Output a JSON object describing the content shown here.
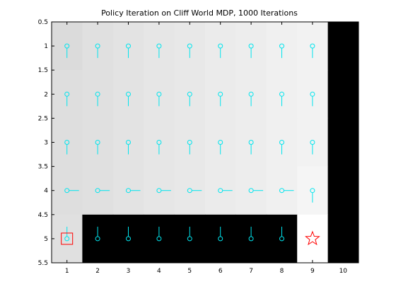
{
  "chart_data": {
    "type": "heatmap",
    "title": "Policy Iteration on Cliff World MDP, 1000 Iterations",
    "xlabel": "",
    "ylabel": "",
    "xlim": [
      0.5,
      10.5
    ],
    "ylim": [
      0.5,
      5.5
    ],
    "y_reversed": true,
    "x_ticks": [
      1,
      2,
      3,
      4,
      5,
      6,
      7,
      8,
      9,
      10
    ],
    "x_tick_labels": [
      "1",
      "2",
      "3",
      "4",
      "5",
      "6",
      "7",
      "8",
      "9",
      "10"
    ],
    "y_ticks": [
      0.5,
      1,
      1.5,
      2,
      2.5,
      3,
      3.5,
      4,
      4.5,
      5,
      5.5
    ],
    "y_tick_labels": [
      "0.5",
      "1",
      "1.5",
      "2",
      "2.5",
      "3",
      "3.5",
      "4",
      "4.5",
      "5",
      "5.5"
    ],
    "grid": false,
    "colormap": "gray",
    "cell_values": [
      [
        0.86,
        0.88,
        0.89,
        0.9,
        0.91,
        0.92,
        0.93,
        0.94,
        0.95,
        0.0
      ],
      [
        0.87,
        0.88,
        0.89,
        0.9,
        0.91,
        0.92,
        0.93,
        0.94,
        0.95,
        0.0
      ],
      [
        0.87,
        0.88,
        0.89,
        0.9,
        0.91,
        0.92,
        0.93,
        0.94,
        0.95,
        0.0
      ],
      [
        0.87,
        0.88,
        0.89,
        0.9,
        0.91,
        0.92,
        0.93,
        0.94,
        0.96,
        0.0
      ],
      [
        0.88,
        0.0,
        0.0,
        0.0,
        0.0,
        0.0,
        0.0,
        0.0,
        1.0,
        0.0
      ]
    ],
    "policy_arrows": [
      [
        "down",
        "down",
        "down",
        "down",
        "down",
        "down",
        "down",
        "down",
        "down",
        null
      ],
      [
        "down",
        "down",
        "down",
        "down",
        "down",
        "down",
        "down",
        "down",
        "down",
        null
      ],
      [
        "down",
        "down",
        "down",
        "down",
        "down",
        "down",
        "down",
        "down",
        "down",
        null
      ],
      [
        "right",
        "right",
        "right",
        "right",
        "right",
        "right",
        "right",
        "right",
        "down",
        null
      ],
      [
        "up",
        "up",
        "up",
        "up",
        "up",
        "up",
        "up",
        "up",
        null,
        null
      ]
    ],
    "arrow_color": "#00e5ee",
    "start_marker": {
      "x": 1,
      "y": 5,
      "shape": "square",
      "color": "#ff0000"
    },
    "goal_marker": {
      "x": 9,
      "y": 5,
      "shape": "star",
      "color": "#ff0000"
    }
  }
}
